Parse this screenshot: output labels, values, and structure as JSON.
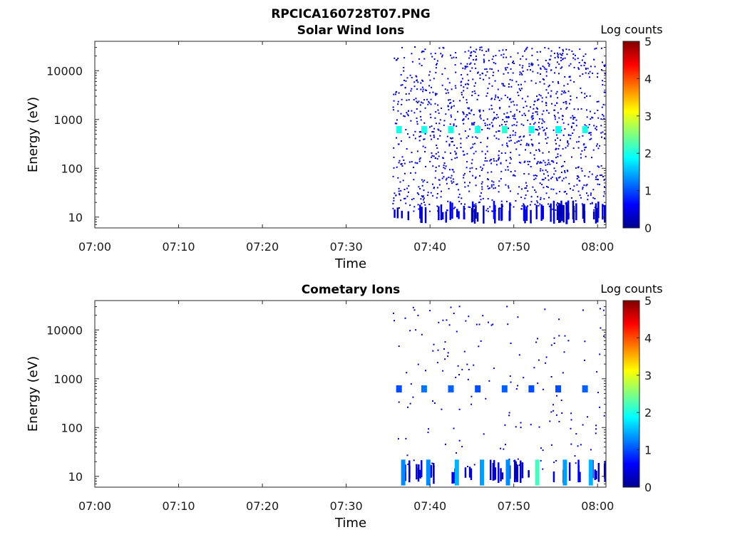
{
  "figure_title": "RPCICA160728T07.PNG",
  "colors": {
    "axis": "#262626",
    "text": "#1a1a1a",
    "colormap": [
      "#00008f",
      "#0000ff",
      "#0080ff",
      "#00ffff",
      "#80ff80",
      "#ffff00",
      "#ff8000",
      "#ff0000",
      "#800000"
    ]
  },
  "chart_data": [
    {
      "type": "heatmap",
      "title": "Solar Wind Ions",
      "xlabel": "Time",
      "ylabel": "Energy (eV)",
      "yscale": "log",
      "xlim": [
        "07:00",
        "08:01"
      ],
      "ylim": [
        6,
        40000
      ],
      "xticks": [
        "07:00",
        "07:10",
        "07:20",
        "07:30",
        "07:40",
        "07:50",
        "08:00"
      ],
      "yticks": [
        "10",
        "100",
        "1000",
        "10000"
      ],
      "colorbar": {
        "label": "Log counts",
        "min": 0,
        "max": 5,
        "ticks": [
          "0",
          "1",
          "2",
          "3",
          "4",
          "5"
        ]
      },
      "data_start": "07:35.5",
      "peaks": [
        {
          "time": "07:36.3",
          "energy": 620,
          "log_counts": 2.0
        },
        {
          "time": "07:39.3",
          "energy": 620,
          "log_counts": 2.0
        },
        {
          "time": "07:42.5",
          "energy": 620,
          "log_counts": 2.0
        },
        {
          "time": "07:45.7",
          "energy": 620,
          "log_counts": 2.0
        },
        {
          "time": "07:48.9",
          "energy": 620,
          "log_counts": 2.1
        },
        {
          "time": "07:52.1",
          "energy": 620,
          "log_counts": 2.0
        },
        {
          "time": "07:55.3",
          "energy": 620,
          "log_counts": 1.9
        },
        {
          "time": "07:58.5",
          "energy": 620,
          "log_counts": 2.0
        }
      ],
      "background_log_counts": 0.1
    },
    {
      "type": "heatmap",
      "title": "Cometary Ions",
      "xlabel": "Time",
      "ylabel": "Energy (eV)",
      "yscale": "log",
      "xlim": [
        "07:00",
        "08:01"
      ],
      "ylim": [
        6,
        40000
      ],
      "xticks": [
        "07:00",
        "07:10",
        "07:20",
        "07:30",
        "07:40",
        "07:50",
        "08:00"
      ],
      "yticks": [
        "10",
        "100",
        "1000",
        "10000"
      ],
      "colorbar": {
        "label": "Log counts",
        "min": 0,
        "max": 5,
        "ticks": [
          "0",
          "1",
          "2",
          "3",
          "4",
          "5"
        ]
      },
      "data_start": "07:35.5",
      "peaks": [
        {
          "time": "07:36.3",
          "energy": 620,
          "log_counts": 1.0
        },
        {
          "time": "07:39.3",
          "energy": 620,
          "log_counts": 1.2
        },
        {
          "time": "07:42.5",
          "energy": 620,
          "log_counts": 1.1
        },
        {
          "time": "07:45.7",
          "energy": 620,
          "log_counts": 1.0
        },
        {
          "time": "07:48.9",
          "energy": 620,
          "log_counts": 1.1
        },
        {
          "time": "07:52.1",
          "energy": 620,
          "log_counts": 1.0
        },
        {
          "time": "07:55.3",
          "energy": 620,
          "log_counts": 1.0
        },
        {
          "time": "07:58.5",
          "energy": 620,
          "log_counts": 1.1
        }
      ],
      "low_energy_bursts": [
        {
          "time": "07:36.8",
          "energy": 9,
          "log_counts": 1.3
        },
        {
          "time": "07:39.8",
          "energy": 9,
          "log_counts": 1.3
        },
        {
          "time": "07:43.2",
          "energy": 9,
          "log_counts": 1.5
        },
        {
          "time": "07:46.2",
          "energy": 9,
          "log_counts": 1.4
        },
        {
          "time": "07:49.3",
          "energy": 9,
          "log_counts": 1.3
        },
        {
          "time": "07:52.8",
          "energy": 9,
          "log_counts": 2.2
        },
        {
          "time": "07:56.1",
          "energy": 9,
          "log_counts": 1.4
        },
        {
          "time": "07:59.2",
          "energy": 9,
          "log_counts": 1.5
        }
      ],
      "background_log_counts": 0.1
    }
  ]
}
